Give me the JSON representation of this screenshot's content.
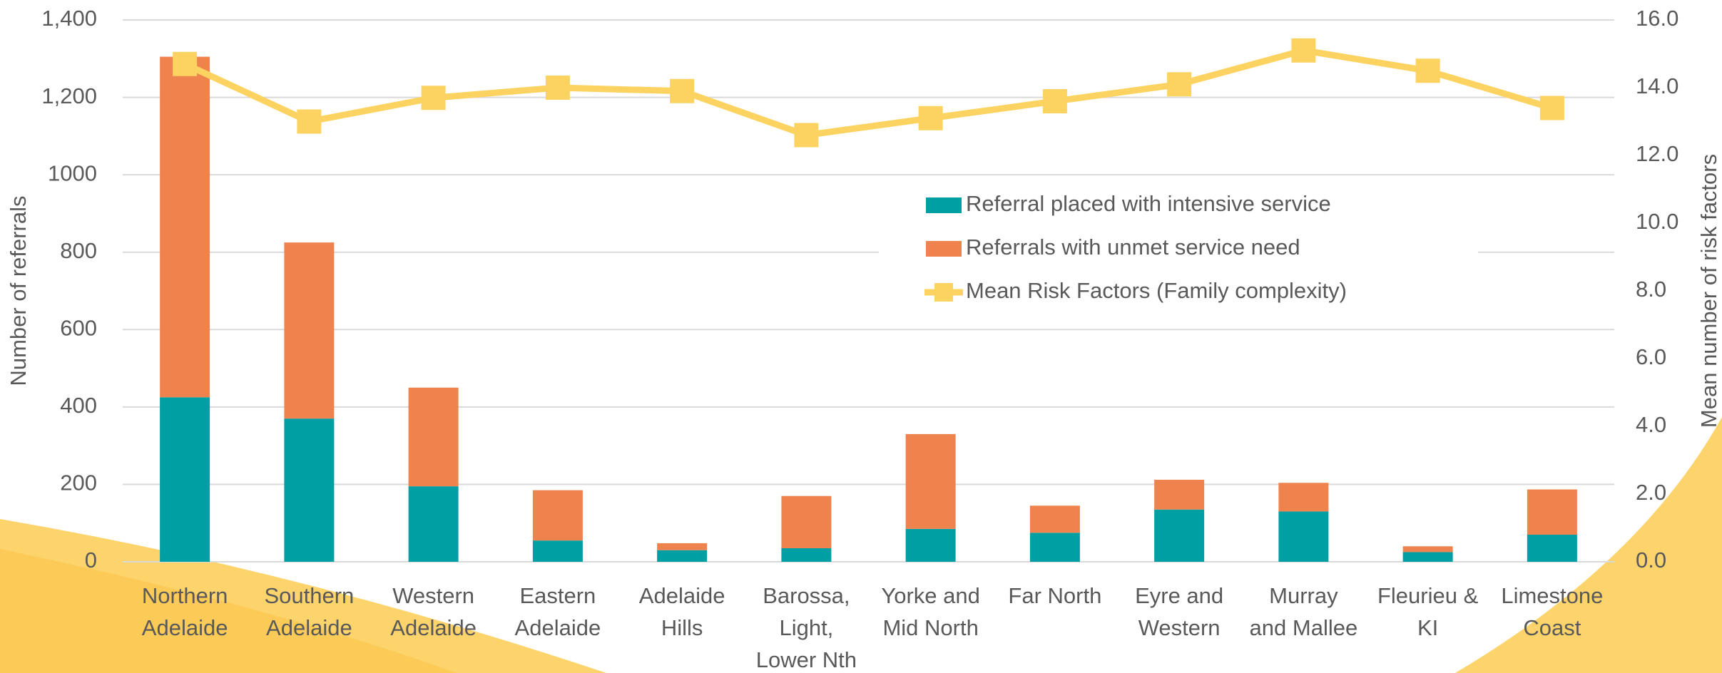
{
  "chart_data": {
    "type": "bar",
    "stacked": true,
    "categories": [
      [
        "Northern",
        "Adelaide"
      ],
      [
        "Southern",
        "Adelaide"
      ],
      [
        "Western",
        "Adelaide"
      ],
      [
        "Eastern",
        "Adelaide"
      ],
      [
        "Adelaide",
        "Hills"
      ],
      [
        "Barossa,",
        "Light,",
        "Lower Nth"
      ],
      [
        "Yorke and",
        "Mid North"
      ],
      [
        "Far North"
      ],
      [
        "Eyre and",
        "Western"
      ],
      [
        "Murray",
        "and Mallee"
      ],
      [
        "Fleurieu &",
        "KI"
      ],
      [
        "Limestone",
        "Coast"
      ]
    ],
    "series": [
      {
        "name": "Referral placed with intensive service",
        "color": "#009fa4",
        "values": [
          425,
          370,
          195,
          55,
          30,
          35,
          85,
          75,
          135,
          130,
          25,
          70
        ]
      },
      {
        "name": "Referrals with unmet service need",
        "color": "#ee834e",
        "values": [
          880,
          455,
          255,
          130,
          18,
          135,
          245,
          70,
          77,
          74,
          15,
          117
        ]
      },
      {
        "name": "Mean Risk Factors (Family complexity)",
        "color": "#fcd361",
        "type": "line",
        "axis": "y2",
        "values": [
          14.7,
          13.0,
          13.7,
          14.0,
          13.9,
          12.6,
          13.1,
          13.6,
          14.1,
          15.1,
          14.5,
          13.4
        ]
      }
    ],
    "y_label": "Number of referrals",
    "y2_label": "Mean number of risk factors",
    "ylim": [
      0,
      1400
    ],
    "yticks": [
      0,
      200,
      400,
      600,
      800,
      1000,
      {
        "value": 1200,
        "label": "1,200"
      },
      {
        "value": 1400,
        "label": "1,400"
      }
    ],
    "y2lim": [
      0,
      16
    ],
    "y2ticks": [
      {
        "value": 0,
        "label": "0.0"
      },
      {
        "value": 2,
        "label": "2.0"
      },
      {
        "value": 4,
        "label": "4.0"
      },
      {
        "value": 6,
        "label": "6.0"
      },
      {
        "value": 8,
        "label": "8.0"
      },
      {
        "value": 10,
        "label": "10.0"
      },
      {
        "value": 12,
        "label": "12.0"
      },
      {
        "value": 14,
        "label": "14.0"
      },
      {
        "value": 16,
        "label": "16.0"
      }
    ],
    "y_label_color": "#009fa4",
    "y2_label_color": "#f9c74f",
    "grid": true
  }
}
